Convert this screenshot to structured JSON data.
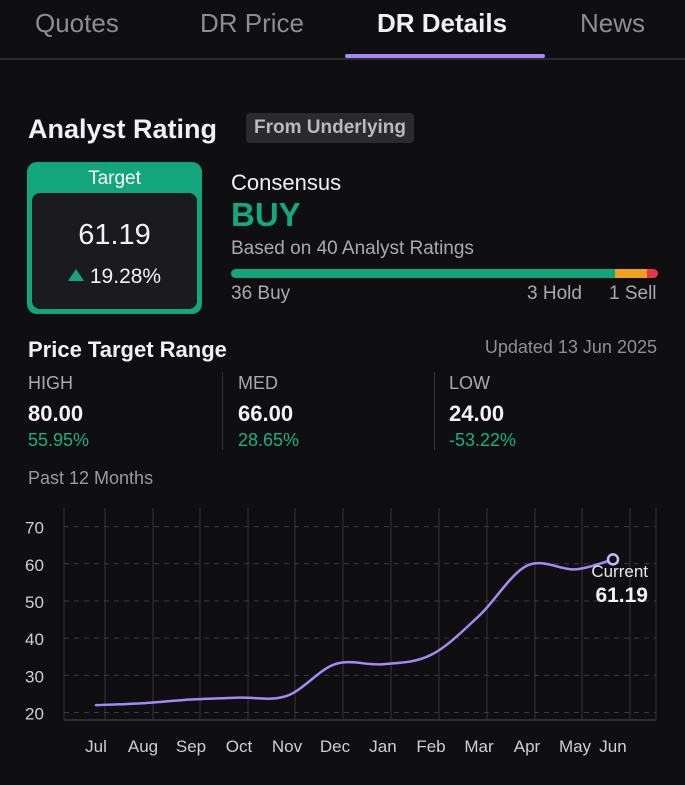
{
  "tabs": [
    {
      "label": "Quotes",
      "active": false
    },
    {
      "label": "DR Price",
      "active": false
    },
    {
      "label": "DR Details",
      "active": true
    },
    {
      "label": "News",
      "active": false
    }
  ],
  "colors": {
    "accent": "#a48af7",
    "buy_green": "#13a57c",
    "hold_orange": "#f0a11b",
    "sell_red": "#e2384a",
    "background": "#0f0f12"
  },
  "analyst_rating": {
    "title": "Analyst Rating",
    "source_chip": "From Underlying",
    "target": {
      "label": "Target",
      "value": "61.19",
      "change": "19.28%",
      "change_icon": "triangle-up-icon"
    },
    "consensus": {
      "label": "Consensus",
      "value": "BUY",
      "based_on": "Based on 40 Analyst Ratings",
      "buy": 36,
      "hold": 3,
      "sell": 1,
      "buy_label": "36 Buy",
      "hold_label": "3 Hold",
      "sell_label": "1 Sell"
    }
  },
  "price_target_range": {
    "title": "Price Target Range",
    "updated": "Updated 13 Jun 2025",
    "high": {
      "label": "HIGH",
      "value": "80.00",
      "pct": "55.95%"
    },
    "med": {
      "label": "MED",
      "value": "66.00",
      "pct": "28.65%"
    },
    "low": {
      "label": "LOW",
      "value": "24.00",
      "pct": "-53.22%"
    }
  },
  "chart_caption": "Past 12 Months",
  "chart_data": {
    "type": "line",
    "x": [
      "Jul",
      "Aug",
      "Sep",
      "Oct",
      "Nov",
      "Dec",
      "Jan",
      "Feb",
      "Mar",
      "Apr",
      "May",
      "Jun"
    ],
    "series": [
      {
        "values": [
          22,
          22.5,
          23.5,
          24,
          24.5,
          33,
          33,
          35.5,
          46,
          59.5,
          58.5,
          61.19
        ]
      }
    ],
    "yticks": [
      20,
      30,
      40,
      50,
      60,
      70
    ],
    "ylim": [
      18,
      75
    ],
    "grid": true,
    "annotation": {
      "label": "Current",
      "value": "61.19"
    }
  }
}
